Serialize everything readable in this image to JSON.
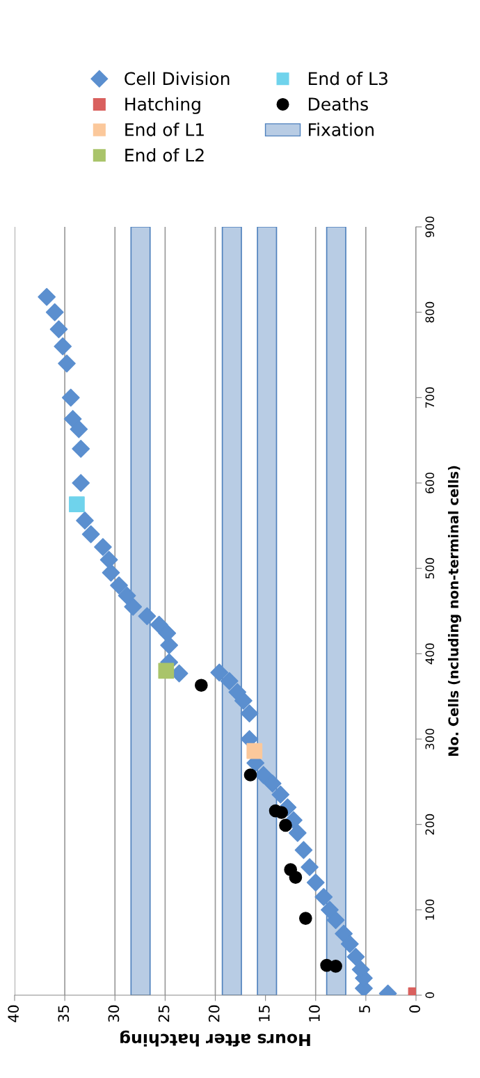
{
  "chart_data": {
    "type": "scatter",
    "xlabel": "Hours after hatching",
    "ylabel": "No. Cells (ncluding non-terminal cells)",
    "xlim": [
      40,
      0
    ],
    "xticks": [
      40,
      35,
      30,
      25,
      20,
      15,
      10,
      5,
      0
    ],
    "ylim": [
      0,
      900
    ],
    "yticks": [
      0,
      100,
      200,
      300,
      400,
      500,
      600,
      700,
      800,
      900
    ],
    "grid": "x",
    "legend": "top",
    "series": [
      {
        "name": "Cell Division",
        "color": "#5b8fcf",
        "marker": "diamond",
        "x": [
          2.8,
          5.2,
          5.2,
          5.5,
          6.0,
          6.6,
          7.2,
          8.0,
          8.6,
          9.2,
          10.0,
          10.6,
          11.2,
          11.8,
          12.2,
          12.8,
          13.5,
          14.3,
          15.2,
          16.0,
          16.6,
          16.6,
          17.2,
          17.8,
          18.6,
          19.6,
          23.6,
          24.6,
          24.6,
          24.8,
          25.6,
          26.8,
          28.2,
          28.8,
          29.6,
          30.4,
          30.6,
          31.2,
          32.4,
          33.0,
          33.4,
          33.4,
          33.6,
          34.2,
          34.4,
          34.8,
          35.2,
          35.6,
          36.0,
          36.8
        ],
        "values": [
          2,
          8,
          20,
          30,
          45,
          60,
          72,
          88,
          100,
          115,
          132,
          150,
          170,
          190,
          205,
          220,
          235,
          248,
          258,
          272,
          300,
          330,
          345,
          355,
          368,
          378,
          377,
          390,
          410,
          424,
          434,
          444,
          455,
          468,
          480,
          495,
          510,
          525,
          540,
          556,
          600,
          640,
          663,
          675,
          700,
          740,
          760,
          780,
          800,
          818
        ]
      },
      {
        "name": "Hatching",
        "color": "#d9605e",
        "marker": "square",
        "x": [
          0
        ],
        "values": [
          0
        ]
      },
      {
        "name": "End of L1",
        "color": "#fbc89b",
        "marker": "square",
        "x": [
          16.1
        ],
        "values": [
          286
        ]
      },
      {
        "name": "End of L2",
        "color": "#a9c46a",
        "marker": "square",
        "x": [
          24.9
        ],
        "values": [
          380
        ]
      },
      {
        "name": "End of L3",
        "color": "#6fd3ec",
        "marker": "square",
        "x": [
          33.8
        ],
        "values": [
          575
        ]
      },
      {
        "name": "Deaths",
        "color": "#000000",
        "marker": "circle",
        "x": [
          21.4,
          16.5,
          14.0,
          13.4,
          13.0,
          12.5,
          12.0,
          11.0,
          8.9,
          8.0
        ],
        "values": [
          363,
          258,
          216,
          214,
          199,
          147,
          138,
          90,
          35,
          34
        ]
      }
    ],
    "bands": [
      {
        "axis": "x",
        "from": 26.5,
        "to": 28.4,
        "label": "Fixation",
        "color": "#b8cce4"
      },
      {
        "axis": "x",
        "from": 17.4,
        "to": 19.3,
        "color": "#b8cce4"
      },
      {
        "axis": "x",
        "from": 13.9,
        "to": 15.8,
        "color": "#b8cce4"
      },
      {
        "axis": "x",
        "from": 7.0,
        "to": 8.9,
        "color": "#b8cce4"
      }
    ]
  }
}
